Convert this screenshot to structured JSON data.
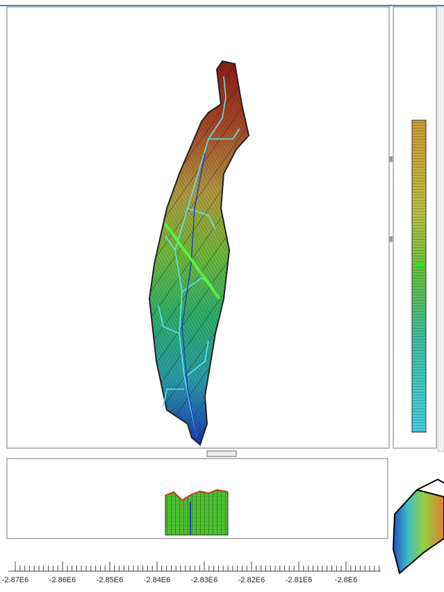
{
  "ruler": {
    "labels": [
      "-2.87E6",
      "-2.86E6",
      "-2.85E6",
      "-2.84E6",
      "-2.83E6",
      "-2.82E6",
      "-2.81E6",
      "-2.8E6"
    ]
  }
}
